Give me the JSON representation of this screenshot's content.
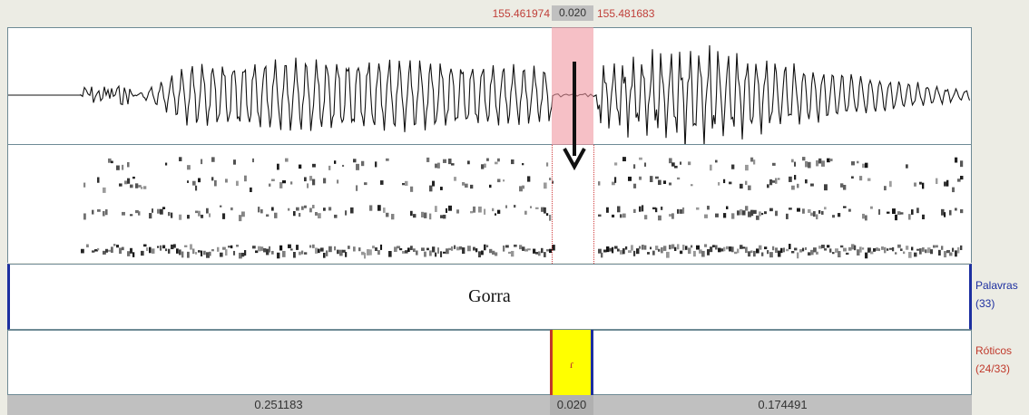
{
  "selection": {
    "start_time": "155.461974",
    "duration": "0.020",
    "end_time": "155.481683"
  },
  "tiers": [
    {
      "name": "Palavras",
      "count": "(33)",
      "interval_label": "Gorra",
      "color": "#1d2fa0"
    },
    {
      "name": "Róticos",
      "count": "(24/33)",
      "interval_label": "ɾ",
      "color": "#c0392b"
    }
  ],
  "durations": {
    "left": "0.251183",
    "selected": "0.020",
    "right": "0.174491"
  },
  "colors": {
    "selection_highlight": "#f096a0",
    "interval_highlight": "#ffff00",
    "time_text": "#c0403a"
  }
}
